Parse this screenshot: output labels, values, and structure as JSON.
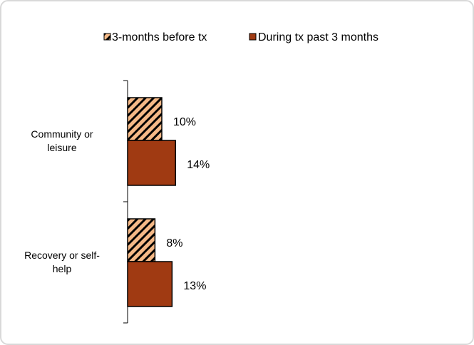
{
  "chart_data": {
    "type": "bar",
    "orientation": "horizontal",
    "categories": [
      "Community or leisure",
      "Recovery or self-help"
    ],
    "category_lines": [
      [
        "Community or",
        "leisure"
      ],
      [
        "Recovery or self-",
        "help"
      ]
    ],
    "series": [
      {
        "name": "3-months before tx",
        "values": [
          10,
          8
        ],
        "labels": [
          "10%",
          "8%"
        ],
        "fill": "#f5b987",
        "pattern": "diagonal-hatch"
      },
      {
        "name": "During tx past 3 months",
        "values": [
          14,
          13
        ],
        "labels": [
          "14%",
          "13%"
        ],
        "fill": "#a03a12",
        "pattern": "solid"
      }
    ],
    "xlim": [
      0,
      100
    ],
    "legend_position": "top",
    "grid": false,
    "title": "",
    "xlabel": "",
    "ylabel": ""
  },
  "colors": {
    "background": "#ffffff",
    "frame_border": "#d9d9d9",
    "hatch_stripe": "#000000",
    "bar_outline": "#000000"
  }
}
